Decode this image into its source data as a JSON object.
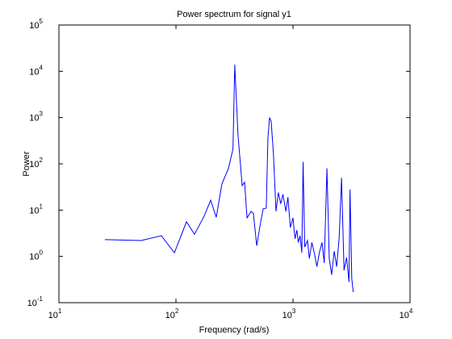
{
  "chart_data": {
    "type": "line",
    "title": "Power spectrum for signal y1",
    "xlabel": "Frequency (rad/s)",
    "ylabel": "Power",
    "x": [
      24.7,
      50.5,
      75,
      97,
      123,
      144,
      174,
      198,
      221,
      247,
      281,
      307,
      318,
      339,
      368,
      386,
      405,
      438,
      459,
      490,
      522,
      556,
      591,
      611,
      631,
      651,
      680,
      716,
      750,
      785,
      820,
      870,
      905,
      950,
      1000,
      1040,
      1080,
      1110,
      1150,
      1190,
      1220,
      1260,
      1330,
      1380,
      1450,
      1530,
      1600,
      1680,
      1770,
      1850,
      1950,
      2040,
      2140,
      2250,
      2360,
      2480,
      2600,
      2730,
      2870,
      3010,
      3070,
      3180,
      3270
    ],
    "values": [
      2.3,
      2.2,
      2.8,
      1.2,
      5.6,
      3.0,
      7.4,
      16.4,
      7,
      37,
      80,
      210,
      14000,
      420,
      34,
      40,
      6.8,
      9.4,
      8.5,
      1.7,
      4.5,
      10.7,
      11,
      375,
      1000,
      830,
      170,
      9.4,
      24,
      13.7,
      22,
      9.4,
      19,
      4.2,
      6.8,
      2.4,
      3.7,
      2.0,
      2.8,
      1.2,
      110,
      1.6,
      2.2,
      0.9,
      2.0,
      1.1,
      0.6,
      1.2,
      2.0,
      0.72,
      80,
      0.9,
      0.4,
      1.3,
      0.6,
      2.5,
      50,
      0.5,
      0.95,
      0.28,
      28,
      0.33,
      0.17
    ],
    "color": "#0000ff",
    "xscale": "log",
    "yscale": "log",
    "xlim": [
      10,
      10000
    ],
    "xticks": [
      {
        "value": 10,
        "label": "10",
        "exponent": "1"
      },
      {
        "value": 100,
        "label": "10",
        "exponent": "2"
      },
      {
        "value": 1000,
        "label": "10",
        "exponent": "3"
      },
      {
        "value": 10000,
        "label": "10",
        "exponent": "4"
      }
    ],
    "ylim": [
      0.1,
      100000
    ],
    "yticks": [
      {
        "value": 0.1,
        "label": "10",
        "exponent": "-1"
      },
      {
        "value": 1,
        "label": "10",
        "exponent": "0"
      },
      {
        "value": 10,
        "label": "10",
        "exponent": "1"
      },
      {
        "value": 100,
        "label": "10",
        "exponent": "2"
      },
      {
        "value": 1000,
        "label": "10",
        "exponent": "3"
      },
      {
        "value": 10000,
        "label": "10",
        "exponent": "4"
      },
      {
        "value": 100000,
        "label": "10",
        "exponent": "5"
      }
    ]
  }
}
